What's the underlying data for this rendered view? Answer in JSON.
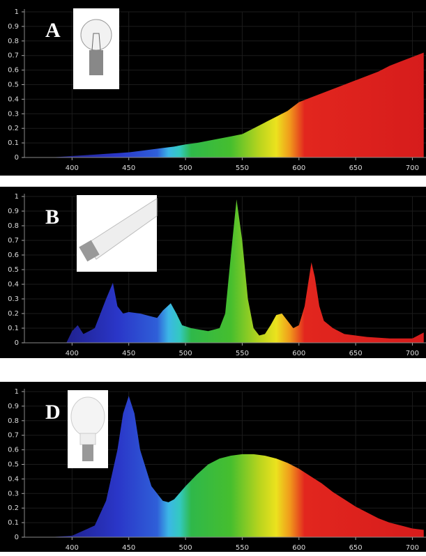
{
  "chart_data": [
    {
      "type": "area",
      "label": "A",
      "x": [
        380,
        390,
        400,
        410,
        420,
        430,
        440,
        450,
        460,
        470,
        480,
        490,
        500,
        510,
        520,
        530,
        540,
        550,
        560,
        570,
        580,
        590,
        600,
        610,
        620,
        630,
        640,
        650,
        660,
        670,
        680,
        690,
        700,
        710
      ],
      "values": [
        0.0,
        0.005,
        0.01,
        0.015,
        0.02,
        0.025,
        0.03,
        0.035,
        0.045,
        0.055,
        0.065,
        0.075,
        0.09,
        0.1,
        0.115,
        0.13,
        0.145,
        0.16,
        0.2,
        0.24,
        0.28,
        0.32,
        0.38,
        0.41,
        0.44,
        0.47,
        0.5,
        0.53,
        0.56,
        0.59,
        0.63,
        0.66,
        0.69,
        0.72
      ],
      "xlim": [
        358,
        712
      ],
      "ylim": [
        0,
        1
      ],
      "xticks": [
        400,
        450,
        500,
        550,
        600,
        650,
        700
      ],
      "yticks": [
        0,
        0.1,
        0.2,
        0.3,
        0.4,
        0.5,
        0.6,
        0.7,
        0.8,
        0.9,
        1
      ],
      "grid": true
    },
    {
      "type": "area",
      "label": "B",
      "x": [
        375,
        395,
        400,
        405,
        410,
        420,
        430,
        436,
        440,
        445,
        450,
        460,
        470,
        475,
        480,
        487,
        492,
        497,
        505,
        520,
        530,
        535,
        540,
        545,
        550,
        555,
        560,
        565,
        570,
        575,
        580,
        585,
        590,
        595,
        600,
        605,
        608,
        611,
        614,
        618,
        622,
        630,
        640,
        660,
        680,
        700,
        710
      ],
      "values": [
        0,
        0.0,
        0.08,
        0.12,
        0.06,
        0.1,
        0.3,
        0.41,
        0.25,
        0.2,
        0.21,
        0.2,
        0.18,
        0.17,
        0.22,
        0.27,
        0.2,
        0.12,
        0.1,
        0.08,
        0.1,
        0.2,
        0.6,
        0.98,
        0.7,
        0.3,
        0.1,
        0.05,
        0.06,
        0.12,
        0.19,
        0.2,
        0.15,
        0.1,
        0.12,
        0.25,
        0.4,
        0.55,
        0.45,
        0.25,
        0.15,
        0.1,
        0.06,
        0.04,
        0.03,
        0.03,
        0.07
      ],
      "xlim": [
        358,
        712
      ],
      "ylim": [
        0,
        1
      ],
      "xticks": [
        400,
        450,
        500,
        550,
        600,
        650,
        700
      ],
      "yticks": [
        0,
        0.1,
        0.2,
        0.3,
        0.4,
        0.5,
        0.6,
        0.7,
        0.8,
        0.9,
        1
      ],
      "grid": true
    },
    {
      "type": "area",
      "label": "D",
      "x": [
        380,
        400,
        420,
        430,
        440,
        445,
        450,
        455,
        460,
        470,
        480,
        485,
        490,
        500,
        510,
        520,
        530,
        540,
        550,
        560,
        570,
        580,
        590,
        600,
        610,
        620,
        630,
        640,
        650,
        660,
        670,
        680,
        690,
        700,
        710
      ],
      "values": [
        0,
        0.01,
        0.08,
        0.25,
        0.6,
        0.85,
        0.97,
        0.85,
        0.6,
        0.35,
        0.25,
        0.24,
        0.26,
        0.35,
        0.43,
        0.5,
        0.54,
        0.56,
        0.57,
        0.57,
        0.56,
        0.54,
        0.51,
        0.47,
        0.42,
        0.37,
        0.31,
        0.26,
        0.21,
        0.17,
        0.13,
        0.1,
        0.08,
        0.06,
        0.05
      ],
      "xlim": [
        358,
        712
      ],
      "ylim": [
        0,
        1
      ],
      "xticks": [
        400,
        450,
        500,
        550,
        600,
        650,
        700
      ],
      "yticks": [
        0,
        0.1,
        0.2,
        0.3,
        0.4,
        0.5,
        0.6,
        0.7,
        0.8,
        0.9,
        1
      ],
      "grid": true
    }
  ]
}
